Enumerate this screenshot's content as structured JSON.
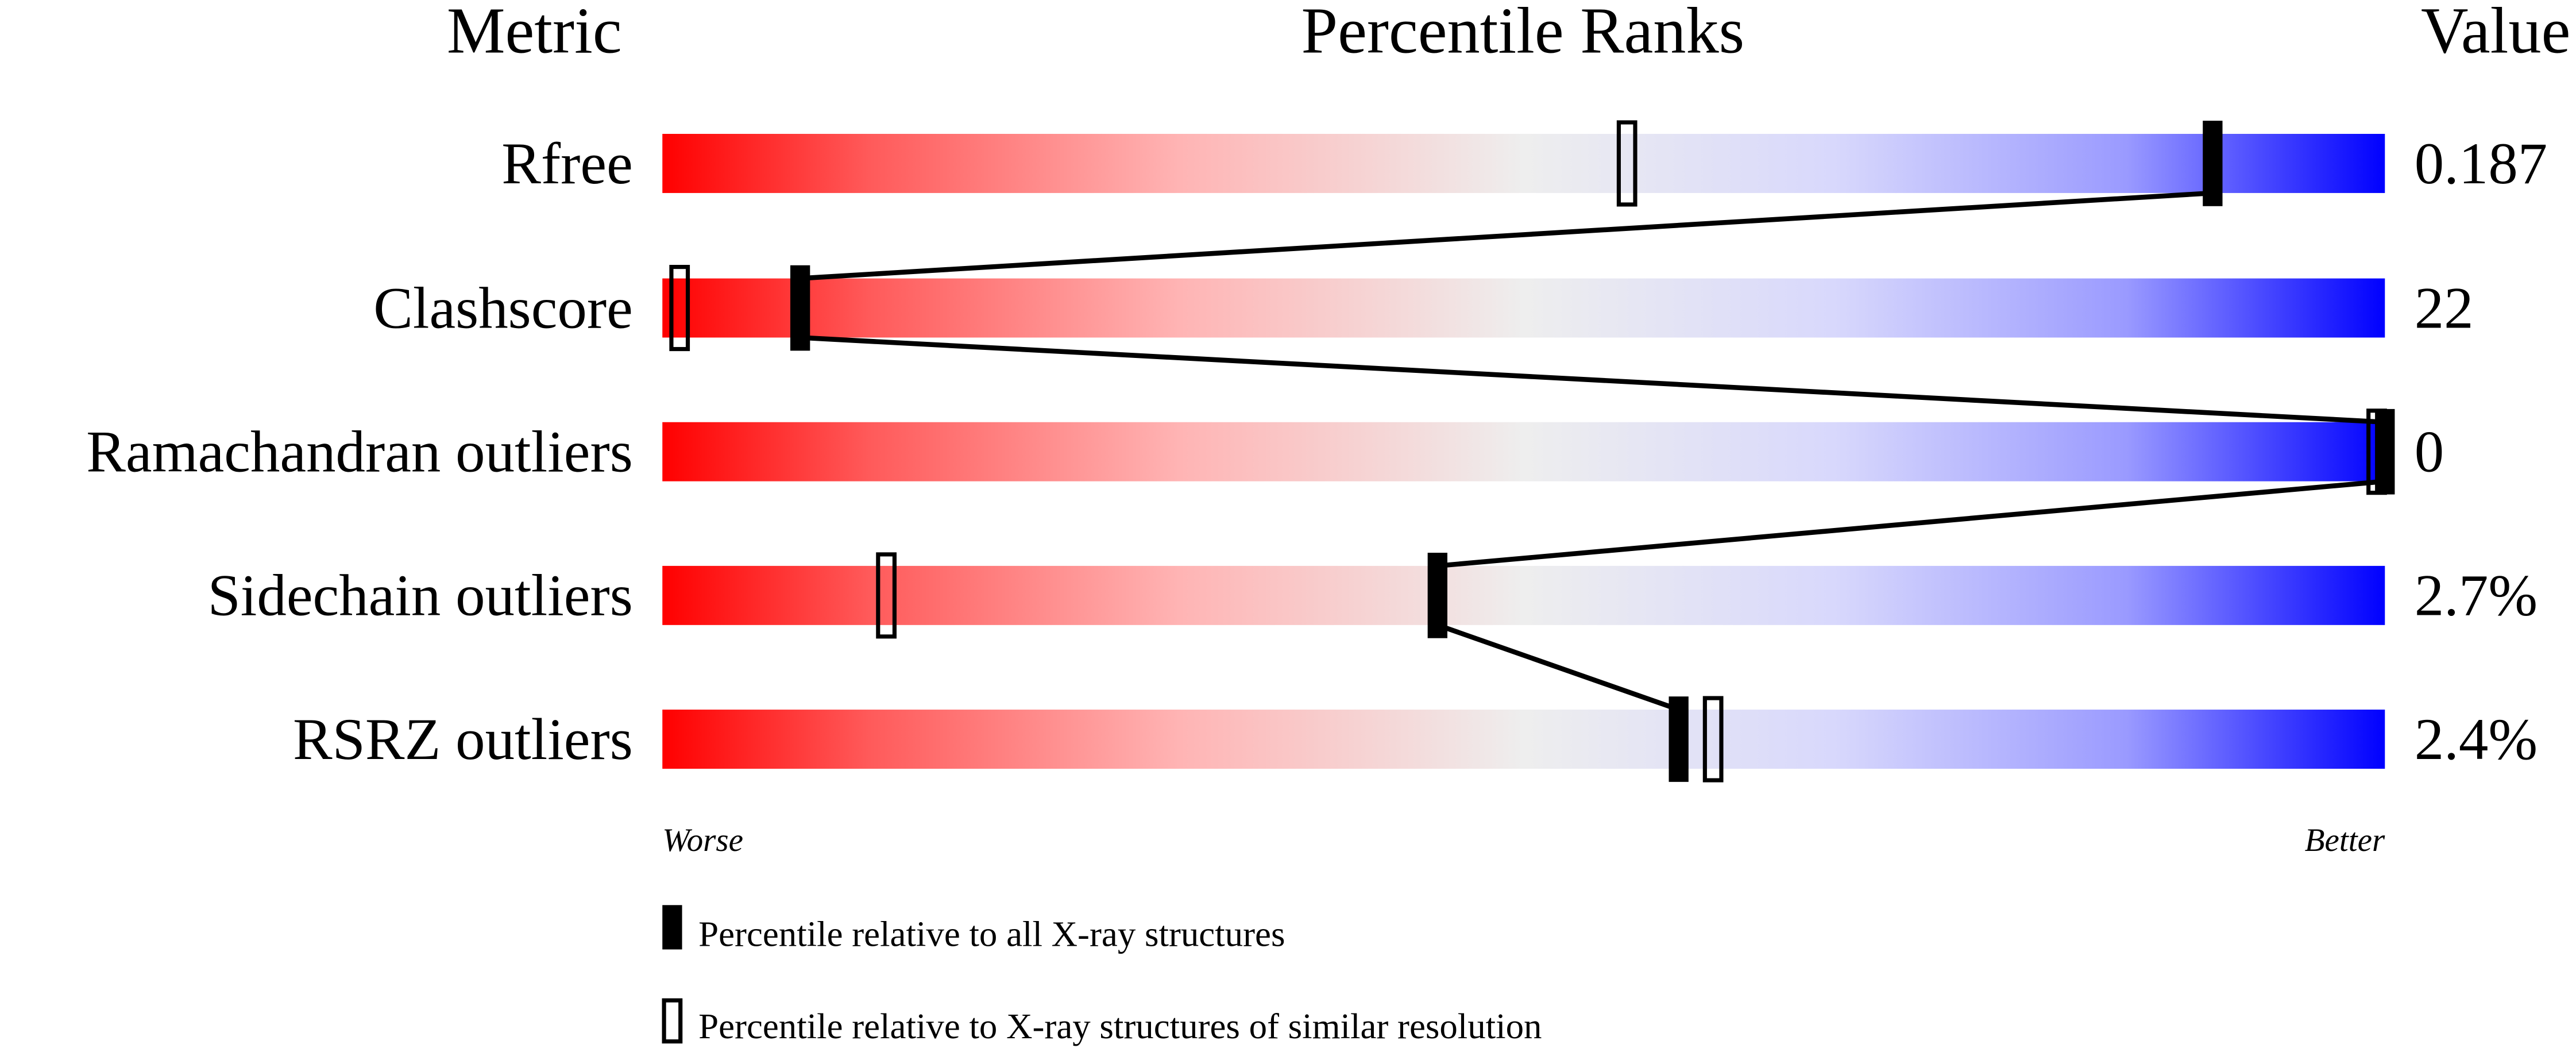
{
  "chart_data": {
    "type": "percentile-bar",
    "headers": {
      "metric": "Metric",
      "ranks": "Percentile Ranks",
      "value": "Value"
    },
    "axis": {
      "left_label": "Worse",
      "right_label": "Better",
      "range": [
        0,
        100
      ]
    },
    "gradient_colors": {
      "worse": "#ff0000",
      "middle": "#eeeeee",
      "better": "#0000ff"
    },
    "rows": [
      {
        "metric": "Rfree",
        "value": "0.187",
        "percentile_all": 90,
        "percentile_similar": 56
      },
      {
        "metric": "Clashscore",
        "value": "22",
        "percentile_all": 8,
        "percentile_similar": 1
      },
      {
        "metric": "Ramachandran outliers",
        "value": "0",
        "percentile_all": 100,
        "percentile_similar": 100
      },
      {
        "metric": "Sidechain outliers",
        "value": "2.7%",
        "percentile_all": 45,
        "percentile_similar": 13
      },
      {
        "metric": "RSRZ outliers",
        "value": "2.4%",
        "percentile_all": 59,
        "percentile_similar": 61
      }
    ],
    "legend": [
      {
        "marker": "filled",
        "label": "Percentile relative to all X-ray structures"
      },
      {
        "marker": "open",
        "label": "Percentile relative to X-ray structures of similar resolution"
      }
    ]
  }
}
